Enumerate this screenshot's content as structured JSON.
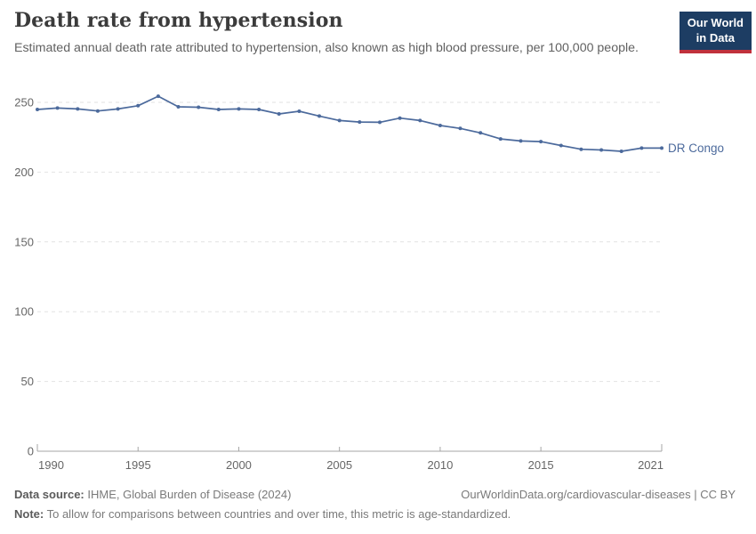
{
  "header": {
    "title": "Death rate from hypertension",
    "subtitle": "Estimated annual death rate attributed to hypertension, also known as high blood pressure, per 100,000 people.",
    "logo_line1": "Our World",
    "logo_line2": "in Data"
  },
  "chart_data": {
    "type": "line",
    "title": "Death rate from hypertension",
    "xlabel": "",
    "ylabel": "",
    "xlim": [
      1990,
      2021
    ],
    "ylim": [
      0,
      250
    ],
    "x_ticks": [
      1990,
      1995,
      2000,
      2005,
      2010,
      2015,
      2021
    ],
    "y_ticks": [
      0,
      50,
      100,
      150,
      200,
      250
    ],
    "grid": "horizontal-dashed",
    "legend_position": "end-of-line-label",
    "series": [
      {
        "name": "DR Congo",
        "color": "#4c6a9c",
        "x": [
          1990,
          1991,
          1992,
          1993,
          1994,
          1995,
          1996,
          1997,
          1998,
          1999,
          2000,
          2001,
          2002,
          2003,
          2004,
          2005,
          2006,
          2007,
          2008,
          2009,
          2010,
          2011,
          2012,
          2013,
          2014,
          2015,
          2016,
          2017,
          2018,
          2019,
          2020,
          2021
        ],
        "values": [
          244.9,
          245.9,
          245.3,
          243.8,
          245.3,
          247.6,
          254.4,
          246.8,
          246.5,
          244.9,
          245.3,
          244.9,
          241.7,
          243.6,
          240.2,
          237.0,
          235.9,
          235.7,
          238.7,
          237.0,
          233.4,
          231.3,
          228.1,
          223.8,
          222.3,
          221.9,
          219.1,
          216.4,
          215.9,
          214.9,
          217.2,
          217.2
        ]
      }
    ]
  },
  "footer": {
    "datasource_label": "Data source:",
    "datasource_text": "IHME, Global Burden of Disease (2024)",
    "attribution": "OurWorldinData.org/cardiovascular-diseases | CC BY",
    "note_label": "Note:",
    "note_text": "To allow for comparisons between countries and over time, this metric is age-standardized."
  },
  "colors": {
    "accent_line": "#4c6a9c",
    "logo_bg": "#1d3d63",
    "logo_stripe": "#c0313c",
    "grid": "#e2e2e2",
    "axis": "#a5a5a5",
    "tick_text": "#666666",
    "title_text": "#3b3b3b",
    "subtitle_text": "#616161",
    "footer_text": "#7a7a7a",
    "footer_label": "#5b5b5b"
  }
}
